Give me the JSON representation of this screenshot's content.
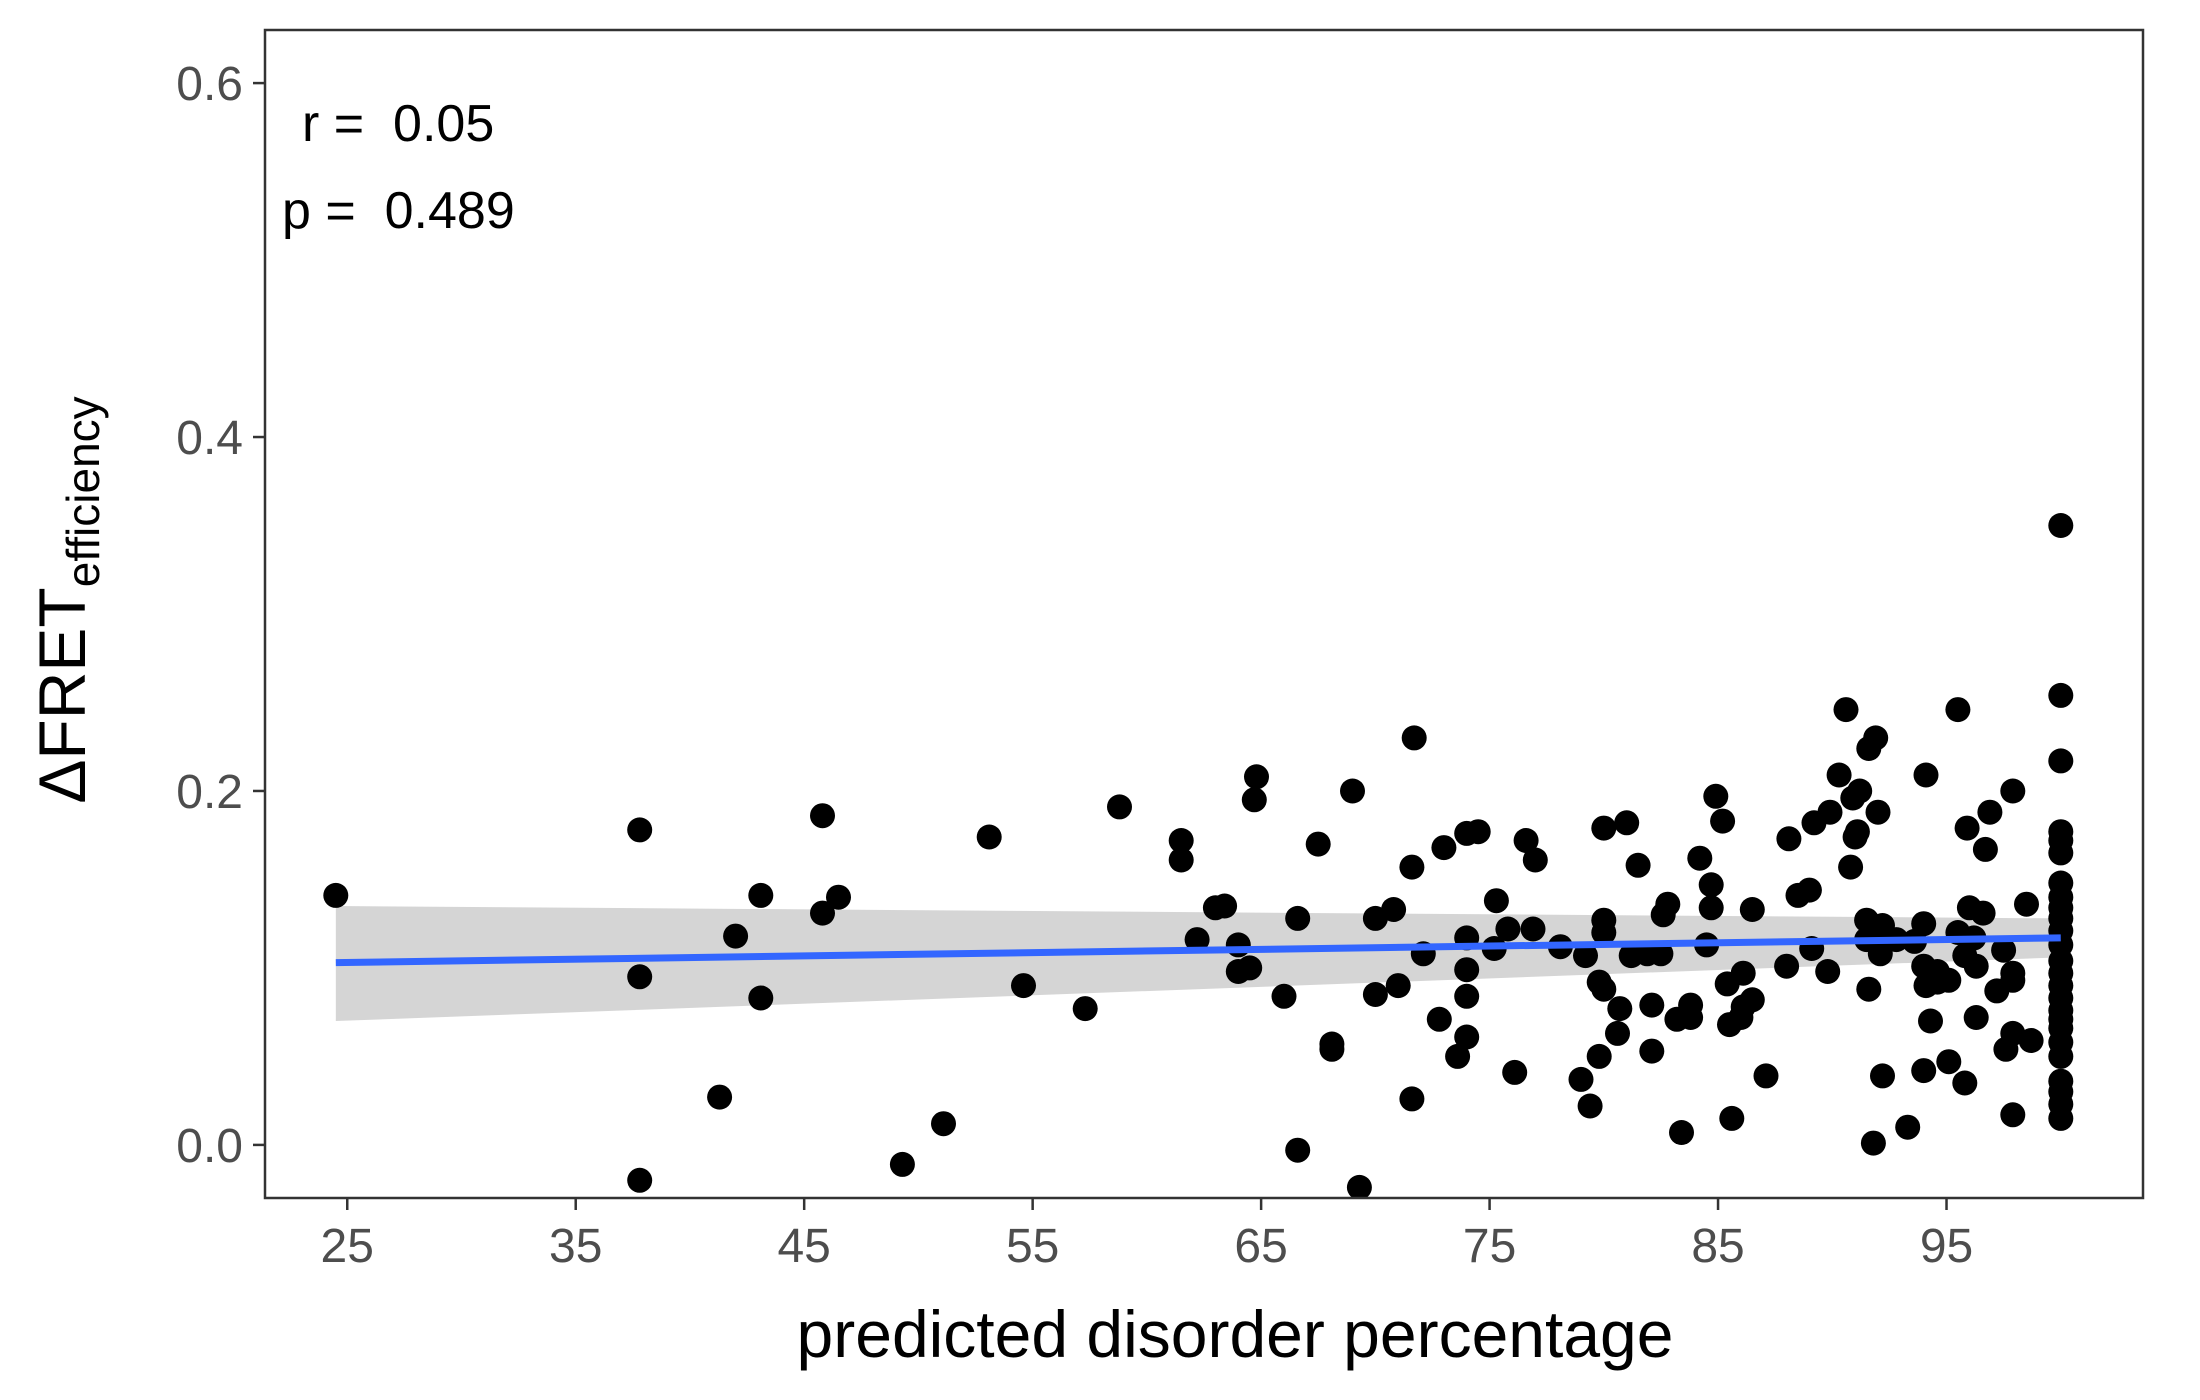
{
  "chart_data": {
    "type": "scatter",
    "xlabel": "predicted disorder percentage",
    "ylabel_main": "ΔFRET",
    "ylabel_sub": "efficiency",
    "xlim": [
      21.4,
      103.6
    ],
    "ylim": [
      -0.03,
      0.63
    ],
    "x_ticks": [
      25,
      35,
      45,
      55,
      65,
      75,
      85,
      95
    ],
    "y_ticks": [
      0.0,
      0.2,
      0.4,
      0.6
    ],
    "y_tick_labels": [
      "0.0",
      "0.2",
      "0.4",
      "0.6"
    ],
    "grid": false,
    "annotations": [
      {
        "text": "r =  0.05"
      },
      {
        "text": "p =  0.489"
      }
    ],
    "colors": {
      "points": "#000000",
      "fit_line": "#3366ff",
      "confidence_band": "#d3d3d3",
      "panel_border": "#333333",
      "tick_text": "#4d4d4d"
    },
    "fit": {
      "x": [
        24.5,
        100
      ],
      "y": [
        0.103,
        0.117
      ],
      "ci_lower": [
        0.07,
        0.106
      ],
      "ci_upper": [
        0.135,
        0.128
      ]
    },
    "points": [
      [
        24.5,
        0.141
      ],
      [
        37.8,
        0.178
      ],
      [
        37.8,
        0.095
      ],
      [
        37.8,
        -0.02
      ],
      [
        41.3,
        0.027
      ],
      [
        42.0,
        0.118
      ],
      [
        43.1,
        0.141
      ],
      [
        43.1,
        0.083
      ],
      [
        45.8,
        0.186
      ],
      [
        45.8,
        0.131
      ],
      [
        46.5,
        0.14
      ],
      [
        49.3,
        -0.011
      ],
      [
        51.1,
        0.012
      ],
      [
        53.1,
        0.174
      ],
      [
        54.6,
        0.09
      ],
      [
        57.3,
        0.077
      ],
      [
        58.8,
        0.191
      ],
      [
        61.5,
        0.172
      ],
      [
        61.5,
        0.161
      ],
      [
        62.2,
        0.116
      ],
      [
        63.0,
        0.134
      ],
      [
        63.4,
        0.135
      ],
      [
        64.0,
        0.113
      ],
      [
        64.0,
        0.098
      ],
      [
        64.5,
        0.1
      ],
      [
        64.7,
        0.195
      ],
      [
        64.8,
        0.208
      ],
      [
        66.0,
        0.084
      ],
      [
        66.6,
        0.128
      ],
      [
        66.6,
        -0.003
      ],
      [
        67.5,
        0.17
      ],
      [
        68.1,
        0.057
      ],
      [
        68.1,
        0.054
      ],
      [
        69.0,
        0.2
      ],
      [
        69.3,
        -0.024
      ],
      [
        70.0,
        0.128
      ],
      [
        70.0,
        0.085
      ],
      [
        70.8,
        0.133
      ],
      [
        71.0,
        0.09
      ],
      [
        71.6,
        0.157
      ],
      [
        71.6,
        0.026
      ],
      [
        71.7,
        0.23
      ],
      [
        72.1,
        0.108
      ],
      [
        72.8,
        0.071
      ],
      [
        73.0,
        0.168
      ],
      [
        73.6,
        0.05
      ],
      [
        74.0,
        0.176
      ],
      [
        74.0,
        0.117
      ],
      [
        74.0,
        0.099
      ],
      [
        74.0,
        0.084
      ],
      [
        74.0,
        0.061
      ],
      [
        74.5,
        0.177
      ],
      [
        75.2,
        0.111
      ],
      [
        75.3,
        0.138
      ],
      [
        75.8,
        0.122
      ],
      [
        76.1,
        0.041
      ],
      [
        76.6,
        0.172
      ],
      [
        76.9,
        0.122
      ],
      [
        77.0,
        0.161
      ],
      [
        78.1,
        0.112
      ],
      [
        79.0,
        0.037
      ],
      [
        79.2,
        0.107
      ],
      [
        79.4,
        0.022
      ],
      [
        79.8,
        0.05
      ],
      [
        79.8,
        0.092
      ],
      [
        80.0,
        0.179
      ],
      [
        80.0,
        0.127
      ],
      [
        80.0,
        0.12
      ],
      [
        80.0,
        0.088
      ],
      [
        80.6,
        0.063
      ],
      [
        80.7,
        0.077
      ],
      [
        81.0,
        0.182
      ],
      [
        81.2,
        0.107
      ],
      [
        81.5,
        0.158
      ],
      [
        81.9,
        0.108
      ],
      [
        82.1,
        0.079
      ],
      [
        82.1,
        0.053
      ],
      [
        82.5,
        0.108
      ],
      [
        82.6,
        0.13
      ],
      [
        82.8,
        0.136
      ],
      [
        83.2,
        0.071
      ],
      [
        83.4,
        0.007
      ],
      [
        83.8,
        0.072
      ],
      [
        83.8,
        0.079
      ],
      [
        84.2,
        0.162
      ],
      [
        84.5,
        0.113
      ],
      [
        84.7,
        0.147
      ],
      [
        84.7,
        0.134
      ],
      [
        84.9,
        0.197
      ],
      [
        85.2,
        0.183
      ],
      [
        85.4,
        0.091
      ],
      [
        85.5,
        0.068
      ],
      [
        85.6,
        0.015
      ],
      [
        86.0,
        0.072
      ],
      [
        86.1,
        0.097
      ],
      [
        86.1,
        0.078
      ],
      [
        86.5,
        0.133
      ],
      [
        86.5,
        0.082
      ],
      [
        87.1,
        0.039
      ],
      [
        88.0,
        0.101
      ],
      [
        88.1,
        0.173
      ],
      [
        88.5,
        0.141
      ],
      [
        89.0,
        0.144
      ],
      [
        89.1,
        0.111
      ],
      [
        89.2,
        0.182
      ],
      [
        89.8,
        0.098
      ],
      [
        89.9,
        0.188
      ],
      [
        90.3,
        0.209
      ],
      [
        90.6,
        0.246
      ],
      [
        90.8,
        0.157
      ],
      [
        90.9,
        0.196
      ],
      [
        91.0,
        0.174
      ],
      [
        91.1,
        0.177
      ],
      [
        91.2,
        0.2
      ],
      [
        91.5,
        0.127
      ],
      [
        91.5,
        0.116
      ],
      [
        91.6,
        0.224
      ],
      [
        91.6,
        0.088
      ],
      [
        91.8,
        0.001
      ],
      [
        91.9,
        0.23
      ],
      [
        92.0,
        0.188
      ],
      [
        92.1,
        0.108
      ],
      [
        92.2,
        0.124
      ],
      [
        92.2,
        0.039
      ],
      [
        92.8,
        0.116
      ],
      [
        93.3,
        0.01
      ],
      [
        93.6,
        0.115
      ],
      [
        94.0,
        0.125
      ],
      [
        94.0,
        0.101
      ],
      [
        94.0,
        0.042
      ],
      [
        94.1,
        0.209
      ],
      [
        94.1,
        0.09
      ],
      [
        94.3,
        0.07
      ],
      [
        94.6,
        0.092
      ],
      [
        94.6,
        0.098
      ],
      [
        95.1,
        0.093
      ],
      [
        95.1,
        0.047
      ],
      [
        95.5,
        0.12
      ],
      [
        95.5,
        0.246
      ],
      [
        95.8,
        0.107
      ],
      [
        95.8,
        0.035
      ],
      [
        95.9,
        0.179
      ],
      [
        96.0,
        0.134
      ],
      [
        96.2,
        0.117
      ],
      [
        96.3,
        0.072
      ],
      [
        96.3,
        0.101
      ],
      [
        96.6,
        0.131
      ],
      [
        96.7,
        0.167
      ],
      [
        96.9,
        0.188
      ],
      [
        97.2,
        0.087
      ],
      [
        97.5,
        0.11
      ],
      [
        97.6,
        0.054
      ],
      [
        97.9,
        0.2
      ],
      [
        97.9,
        0.093
      ],
      [
        97.9,
        0.097
      ],
      [
        97.9,
        0.063
      ],
      [
        97.9,
        0.017
      ],
      [
        98.5,
        0.136
      ],
      [
        98.7,
        0.059
      ],
      [
        100.0,
        0.35
      ],
      [
        100.0,
        0.254
      ],
      [
        100.0,
        0.217
      ],
      [
        100.0,
        0.177
      ],
      [
        100.0,
        0.172
      ],
      [
        100.0,
        0.165
      ],
      [
        100.0,
        0.148
      ],
      [
        100.0,
        0.14
      ],
      [
        100.0,
        0.134
      ],
      [
        100.0,
        0.128
      ],
      [
        100.0,
        0.121
      ],
      [
        100.0,
        0.113
      ],
      [
        100.0,
        0.104
      ],
      [
        100.0,
        0.097
      ],
      [
        100.0,
        0.09
      ],
      [
        100.0,
        0.083
      ],
      [
        100.0,
        0.076
      ],
      [
        100.0,
        0.071
      ],
      [
        100.0,
        0.066
      ],
      [
        100.0,
        0.058
      ],
      [
        100.0,
        0.05
      ],
      [
        100.0,
        0.036
      ],
      [
        100.0,
        0.03
      ],
      [
        100.0,
        0.023
      ],
      [
        100.0,
        0.015
      ]
    ]
  }
}
